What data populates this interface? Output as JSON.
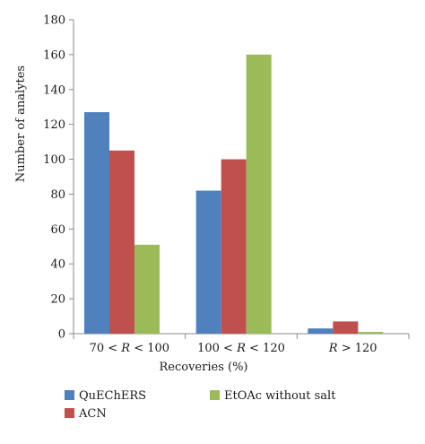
{
  "chart_data": {
    "type": "bar",
    "categories": [
      {
        "pre": "70 < ",
        "var": "R",
        "post": " < 100"
      },
      {
        "pre": "100 < ",
        "var": "R",
        "post": " < 120"
      },
      {
        "pre": "",
        "var": "R",
        "post": " > 120"
      }
    ],
    "series": [
      {
        "name": "QuEChERS",
        "color": "#4f81bd",
        "values": [
          127,
          82,
          3
        ]
      },
      {
        "name": "ACN",
        "color": "#c0504d",
        "values": [
          105,
          100,
          7
        ]
      },
      {
        "name": "EtOAc without salt",
        "color": "#9bbb59",
        "values": [
          51,
          160,
          1
        ]
      }
    ],
    "xlabel": "Recoveries (%)",
    "ylabel": "Number of analytes",
    "ylim": [
      0,
      180
    ],
    "yticks": [
      0,
      20,
      40,
      60,
      80,
      100,
      120,
      140,
      160,
      180
    ],
    "grid": false,
    "legend_position": "bottom"
  }
}
